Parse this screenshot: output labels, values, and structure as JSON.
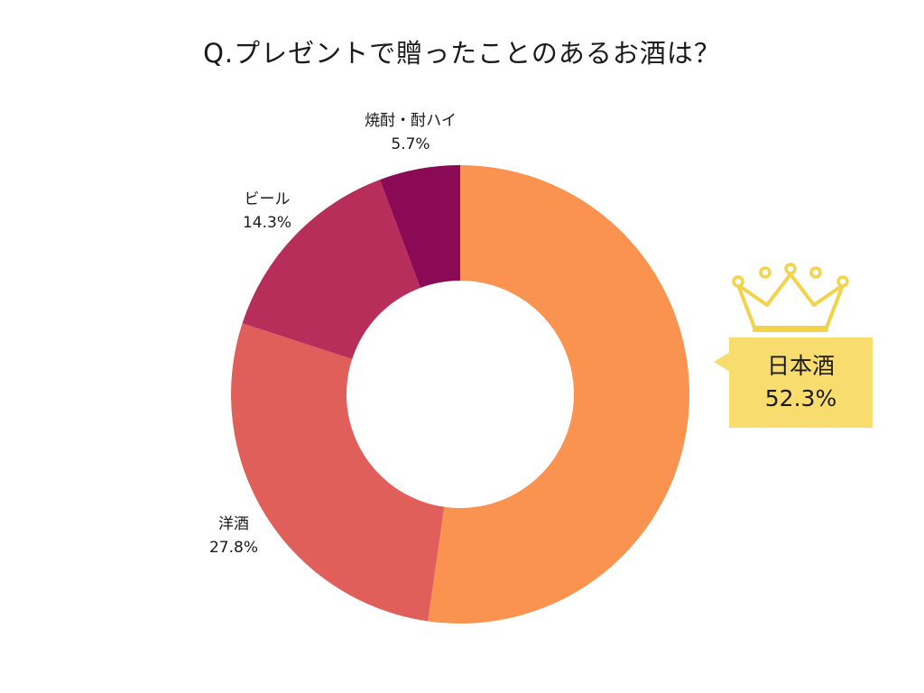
{
  "title": "Q.プレゼントで贈ったことのあるお酒は？",
  "chart_data": {
    "type": "pie",
    "donut": true,
    "unit": "%",
    "slices": [
      {
        "label": "日本酒",
        "value": 52.3,
        "display": "52.3%",
        "color": "#fa934f"
      },
      {
        "label": "洋酒",
        "value": 27.8,
        "display": "27.8%",
        "color": "#e15f5a"
      },
      {
        "label": "ビール",
        "value": 14.3,
        "display": "14.3%",
        "color": "#b82e5b"
      },
      {
        "label": "焼酎・酎ハイ",
        "value": 5.7,
        "display": "5.7%",
        "color": "#8a0a56"
      }
    ],
    "highlight": {
      "label": "日本酒",
      "display": "52.3%",
      "icon": "crown-icon",
      "color": "#f8dc6e"
    }
  }
}
